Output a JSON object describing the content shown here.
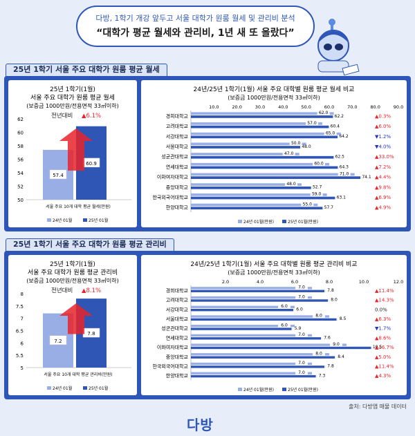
{
  "header": {
    "subtitle": "다방, 1학기 개강 앞두고 서울 대학가 원룸 월세 및 관리비 분석",
    "title": "“대학가 평균 월세와 관리비, 1년 새 또 올랐다”"
  },
  "sections": [
    {
      "title": "25년 1학기 서울 주요 대학가 원룸 평균 월세"
    },
    {
      "title": "25년 1학기 서울 주요 대학가 원룸 평균 관리비"
    }
  ],
  "chart_data": [
    {
      "type": "bar",
      "title": "25년 1학기(1월)",
      "subtitle": "서울 주요 대학가 원룸 평균 월세",
      "subtitle2": "(보증금 1000만원/전용면적 33㎡이하)",
      "categories": [
        "서울 주요 10개 대학 평균 월세(만원)"
      ],
      "series": [
        {
          "name": "24년 01월",
          "values": [
            57.4
          ]
        },
        {
          "name": "25년 01월",
          "values": [
            60.9
          ]
        }
      ],
      "ylim": [
        50,
        62
      ],
      "yticks": [
        "50",
        "52",
        "54",
        "56",
        "58",
        "60",
        "62"
      ],
      "annotation": "전년대비",
      "annotation_value": "▲6.1%",
      "legend": "bottom"
    },
    {
      "type": "bar",
      "title": "24년/25년 1학기(1월) 서울 주요 대학별 원룸 평균 월세 비교",
      "subtitle": "(보증금 1000만원/전용면적 33㎡이하)",
      "categories": [
        "경희대학교",
        "고려대학교",
        "서강대학교",
        "서울대학교",
        "성균관대학교",
        "연세대학교",
        "이화여자대학교",
        "중앙대학교",
        "한국외국어대학교",
        "한양대학교"
      ],
      "series": [
        {
          "name": "24년 01월(만원)",
          "values": [
            62.0,
            57.0,
            65.0,
            50.0,
            47.0,
            60.0,
            71.0,
            48.0,
            59.0,
            55.0
          ]
        },
        {
          "name": "25년 01월(만원)",
          "values": [
            62.2,
            60.4,
            64.2,
            48.0,
            62.5,
            64.3,
            74.1,
            52.7,
            63.1,
            57.7
          ]
        }
      ],
      "changes": [
        "▲0.3%",
        "▲6.0%",
        "▼1.2%",
        "▼4.0%",
        "▲33.0%",
        "▲7.2%",
        "▲4.4%",
        "▲9.8%",
        "▲6.9%",
        "▲4.9%"
      ],
      "xlim": [
        0,
        90
      ],
      "xticks": [
        "10.0",
        "20.0",
        "30.0",
        "40.0",
        "50.0",
        "60.0",
        "70.0",
        "80.0",
        "90.0"
      ],
      "legend": "bottom"
    },
    {
      "type": "bar",
      "title": "25년 1학기(1월)",
      "subtitle": "서울 주요 대학가 원룸 평균 관리비",
      "subtitle2": "(보증금 1000만원/전용면적 33㎡이하)",
      "categories": [
        "서울 주요 10개 대학 평균 관리비(만원)"
      ],
      "series": [
        {
          "name": "24년 01월",
          "values": [
            7.2
          ]
        },
        {
          "name": "25년 01월",
          "values": [
            7.8
          ]
        }
      ],
      "ylim": [
        5,
        8
      ],
      "yticks": [
        "5",
        "5.5",
        "6",
        "6.5",
        "7",
        "7.5",
        "8"
      ],
      "annotation": "전년대비",
      "annotation_value": "▲8.1%",
      "legend": "bottom"
    },
    {
      "type": "bar",
      "title": "24년/25년 1학기(1월) 서울 주요 대학별 원룸 평균 관리비 비교",
      "subtitle": "(보증금 1000만원/전용면적 33㎡이하)",
      "categories": [
        "경희대학교",
        "고려대학교",
        "서강대학교",
        "서울대학교",
        "성균관대학교",
        "연세대학교",
        "이화여자대학교",
        "중앙대학교",
        "한국외국어대학교",
        "한양대학교"
      ],
      "series": [
        {
          "name": "24년 01월(만원)",
          "values": [
            7.0,
            7.0,
            6.0,
            8.0,
            6.0,
            7.0,
            9.0,
            8.0,
            7.0,
            7.0
          ]
        },
        {
          "name": "25년 01월(만원)",
          "values": [
            7.8,
            8.0,
            6.0,
            8.5,
            5.9,
            7.6,
            10.5,
            8.4,
            7.8,
            7.3
          ]
        }
      ],
      "changes": [
        "▲11.4%",
        "▲14.3%",
        "0.0%",
        "▲6.3%",
        "▼1.7%",
        "▲8.6%",
        "▲16.7%",
        "▲5.0%",
        "▲11.4%",
        "▲4.3%"
      ],
      "xlim": [
        0,
        12
      ],
      "xticks": [
        "2.0",
        "4.0",
        "6.0",
        "8.0",
        "10.0",
        "12.0"
      ],
      "legend": "bottom"
    }
  ],
  "footer": {
    "source": "출처: 다방앱 매물 데이터",
    "logo": "다방"
  },
  "colors": {
    "primary": "#2d56b8",
    "bar_light": "#9aaee6",
    "bar_dark": "#2f55b5",
    "up": "#e8232a",
    "down": "#2233cc"
  }
}
